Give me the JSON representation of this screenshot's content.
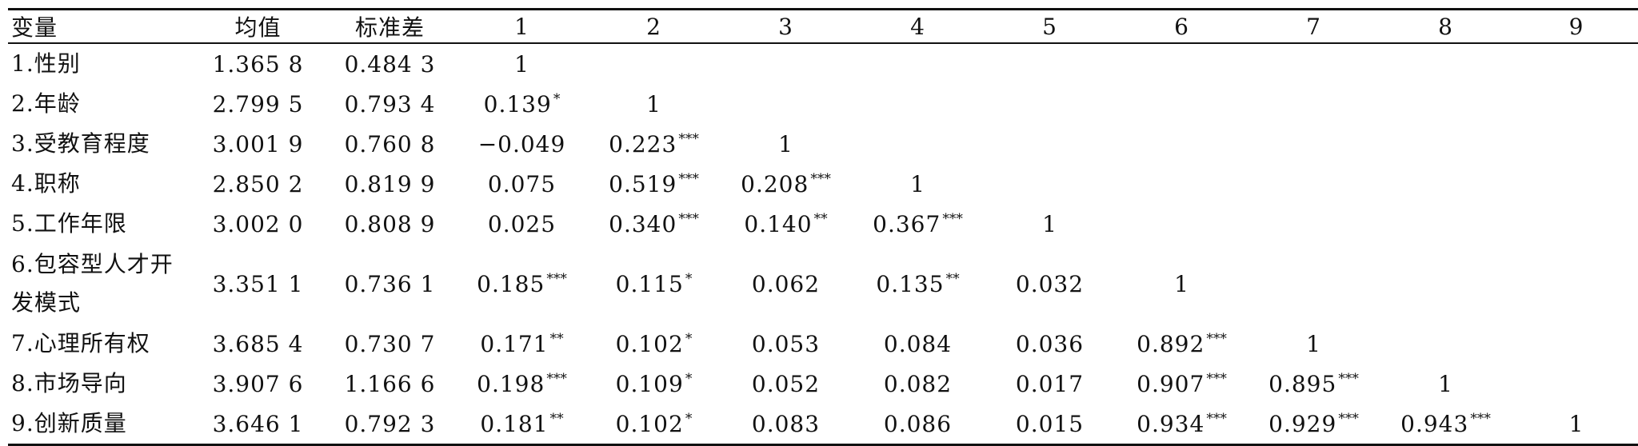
{
  "table": {
    "headers": [
      "变量",
      "均值",
      "标准差",
      "1",
      "2",
      "3",
      "4",
      "5",
      "6",
      "7",
      "8",
      "9"
    ],
    "rows": [
      {
        "var": "1.性别",
        "mean": "1.365 8",
        "sd": "0.484 3",
        "c": [
          {
            "v": "1",
            "s": ""
          }
        ]
      },
      {
        "var": "2.年龄",
        "mean": "2.799 5",
        "sd": "0.793 4",
        "c": [
          {
            "v": "0.139",
            "s": "*"
          },
          {
            "v": "1",
            "s": ""
          }
        ]
      },
      {
        "var": "3.受教育程度",
        "mean": "3.001 9",
        "sd": "0.760 8",
        "c": [
          {
            "v": "−0.049",
            "s": ""
          },
          {
            "v": "0.223",
            "s": "***"
          },
          {
            "v": "1",
            "s": ""
          }
        ]
      },
      {
        "var": "4.职称",
        "mean": "2.850 2",
        "sd": "0.819 9",
        "c": [
          {
            "v": "0.075",
            "s": ""
          },
          {
            "v": "0.519",
            "s": "***"
          },
          {
            "v": "0.208",
            "s": "***"
          },
          {
            "v": "1",
            "s": ""
          }
        ]
      },
      {
        "var": "5.工作年限",
        "mean": "3.002 0",
        "sd": "0.808 9",
        "c": [
          {
            "v": "0.025",
            "s": ""
          },
          {
            "v": "0.340",
            "s": "***"
          },
          {
            "v": "0.140",
            "s": "**"
          },
          {
            "v": "0.367",
            "s": "***"
          },
          {
            "v": "1",
            "s": ""
          }
        ]
      },
      {
        "var": "6.包容型人才开发模式",
        "mean": "3.351 1",
        "sd": "0.736 1",
        "c": [
          {
            "v": "0.185",
            "s": "***"
          },
          {
            "v": "0.115",
            "s": "*"
          },
          {
            "v": "0.062",
            "s": ""
          },
          {
            "v": "0.135",
            "s": "**"
          },
          {
            "v": "0.032",
            "s": ""
          },
          {
            "v": "1",
            "s": ""
          }
        ]
      },
      {
        "var": "7.心理所有权",
        "mean": "3.685 4",
        "sd": "0.730 7",
        "c": [
          {
            "v": "0.171",
            "s": "**"
          },
          {
            "v": "0.102",
            "s": "*"
          },
          {
            "v": "0.053",
            "s": ""
          },
          {
            "v": "0.084",
            "s": ""
          },
          {
            "v": "0.036",
            "s": ""
          },
          {
            "v": "0.892",
            "s": "***"
          },
          {
            "v": "1",
            "s": ""
          }
        ]
      },
      {
        "var": "8.市场导向",
        "mean": "3.907 6",
        "sd": "1.166 6",
        "c": [
          {
            "v": "0.198",
            "s": "***"
          },
          {
            "v": "0.109",
            "s": "*"
          },
          {
            "v": "0.052",
            "s": ""
          },
          {
            "v": "0.082",
            "s": ""
          },
          {
            "v": "0.017",
            "s": ""
          },
          {
            "v": "0.907",
            "s": "***"
          },
          {
            "v": "0.895",
            "s": "***"
          },
          {
            "v": "1",
            "s": ""
          }
        ]
      },
      {
        "var": "9.创新质量",
        "mean": "3.646 1",
        "sd": "0.792 3",
        "c": [
          {
            "v": "0.181",
            "s": "**"
          },
          {
            "v": "0.102",
            "s": "*"
          },
          {
            "v": "0.083",
            "s": ""
          },
          {
            "v": "0.086",
            "s": ""
          },
          {
            "v": "0.015",
            "s": ""
          },
          {
            "v": "0.934",
            "s": "***"
          },
          {
            "v": "0.929",
            "s": "***"
          },
          {
            "v": "0.943",
            "s": "***"
          },
          {
            "v": "1",
            "s": ""
          }
        ]
      }
    ]
  }
}
